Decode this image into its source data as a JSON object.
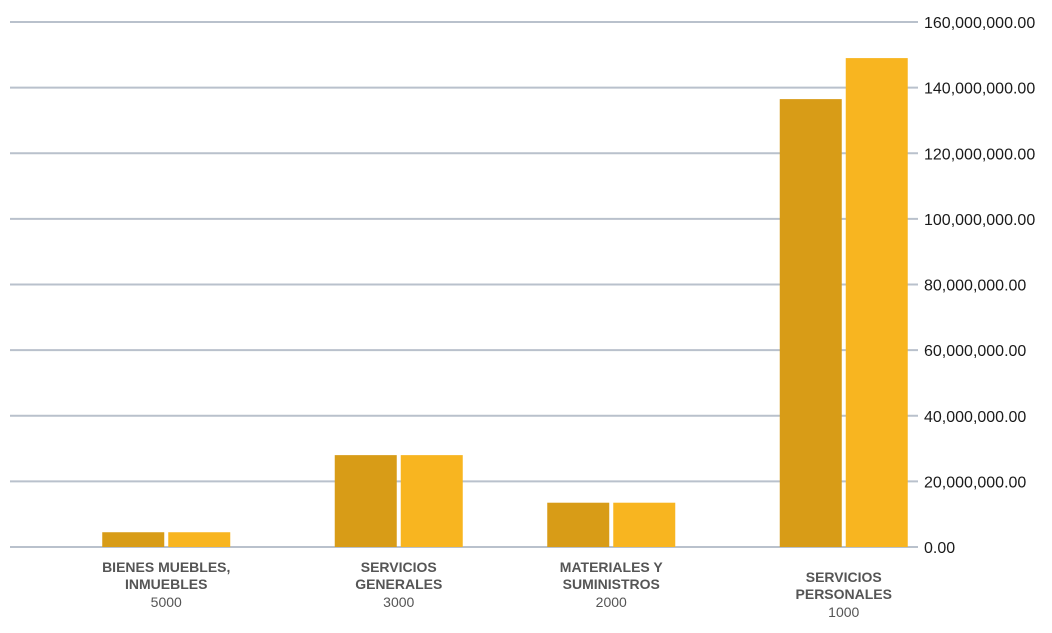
{
  "chart_data": {
    "type": "bar",
    "categories": [
      {
        "name_lines": [
          "BIENES MUEBLES,",
          "INMUEBLES"
        ],
        "code": "5000"
      },
      {
        "name_lines": [
          "SERVICIOS",
          "GENERALES"
        ],
        "code": "3000"
      },
      {
        "name_lines": [
          "MATERIALES Y",
          "SUMINISTROS"
        ],
        "code": "2000"
      },
      {
        "name_lines": [
          "SERVICIOS",
          "PERSONALES"
        ],
        "code": "1000"
      }
    ],
    "series": [
      {
        "color": "#d89c17",
        "values": [
          4500000,
          28000000,
          13500000,
          136500000
        ]
      },
      {
        "color": "#f8b520",
        "values": [
          4500000,
          28000000,
          13500000,
          149000000
        ]
      }
    ],
    "y_ticks": [
      {
        "value": 0,
        "label": "0.00"
      },
      {
        "value": 20000000,
        "label": "20,000,000.00"
      },
      {
        "value": 40000000,
        "label": "40,000,000.00"
      },
      {
        "value": 60000000,
        "label": "60,000,000.00"
      },
      {
        "value": 80000000,
        "label": "80,000,000.00"
      },
      {
        "value": 100000000,
        "label": "100,000,000.00"
      },
      {
        "value": 120000000,
        "label": "120,000,000.00"
      },
      {
        "value": 140000000,
        "label": "140,000,000.00"
      },
      {
        "value": 160000000,
        "label": "160,000,000.00"
      }
    ],
    "ylim": [
      0,
      160000000
    ],
    "y_axis_side": "right",
    "grid": true,
    "legend": "none"
  }
}
